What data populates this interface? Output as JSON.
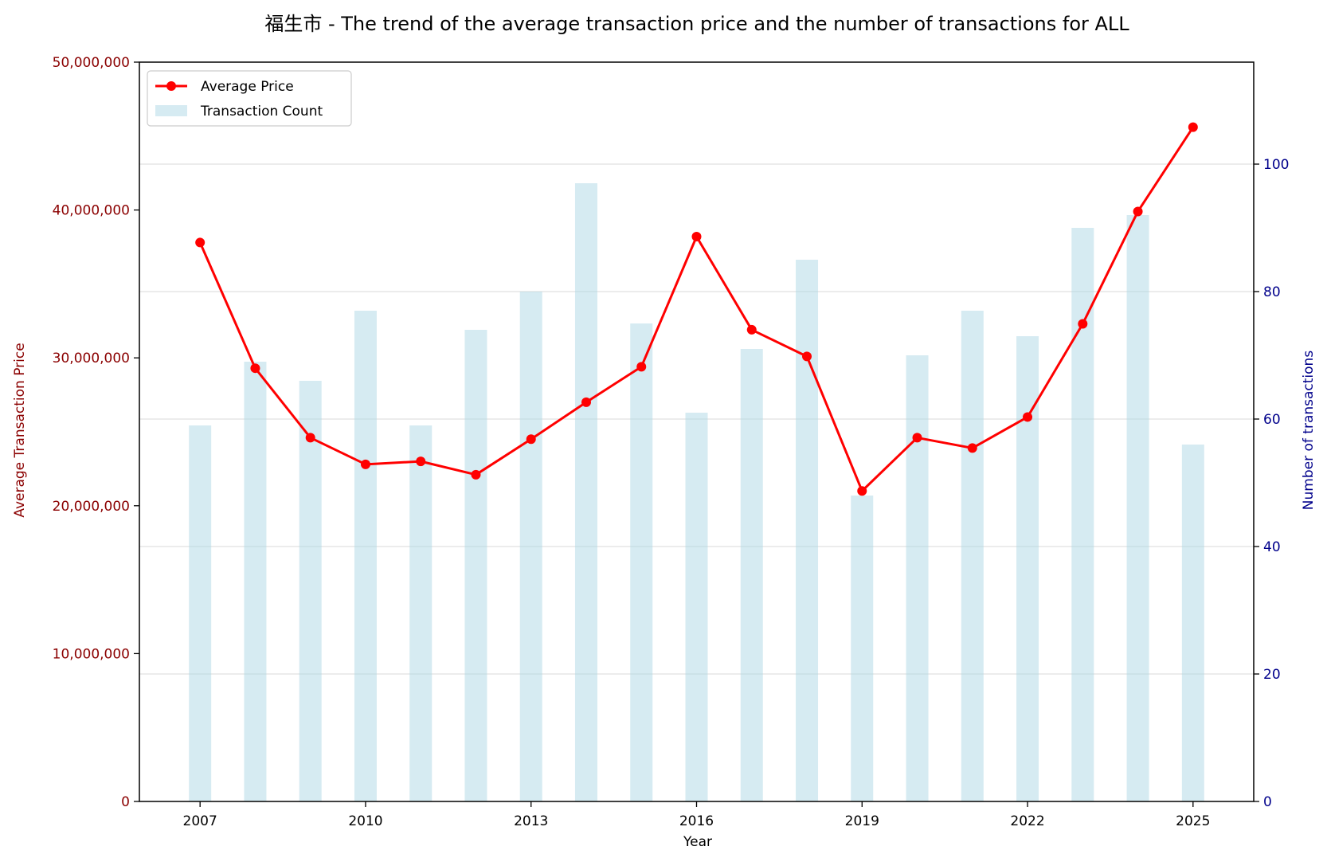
{
  "chart_data": {
    "type": "bar+line",
    "title": "福生市 - The trend of the average transaction price and the number of transactions for ALL",
    "xlabel": "Year",
    "ylabel_left": "Average Transaction Price",
    "ylabel_right": "Number of transactions",
    "x": [
      2007,
      2008,
      2009,
      2010,
      2011,
      2012,
      2013,
      2014,
      2015,
      2016,
      2017,
      2018,
      2019,
      2020,
      2021,
      2022,
      2023,
      2024,
      2025
    ],
    "x_ticks": [
      "2007",
      "2010",
      "2013",
      "2016",
      "2019",
      "2022",
      "2025"
    ],
    "xlim": [
      2005.9,
      2026.1
    ],
    "ylim_left": [
      0,
      50000000
    ],
    "ylim_right": [
      0,
      116
    ],
    "left_ticks": [
      "0",
      "10,000,000",
      "20,000,000",
      "30,000,000",
      "40,000,000",
      "50,000,000"
    ],
    "right_ticks": [
      "0",
      "20",
      "40",
      "60",
      "80",
      "100"
    ],
    "grid": true,
    "legend_position": "top-left",
    "series": [
      {
        "name": "Average Price",
        "type": "line",
        "axis": "left",
        "color": "#ff0000",
        "values": [
          37800000,
          29300000,
          24600000,
          22800000,
          23000000,
          22100000,
          24500000,
          27000000,
          29400000,
          38200000,
          31900000,
          30100000,
          21000000,
          24600000,
          23900000,
          26000000,
          32300000,
          39900000,
          45600000
        ]
      },
      {
        "name": "Transaction Count",
        "type": "bar",
        "axis": "right",
        "color": "#add8e6",
        "values": [
          59,
          69,
          66,
          77,
          59,
          74,
          80,
          97,
          75,
          61,
          71,
          85,
          48,
          70,
          77,
          73,
          90,
          92,
          56
        ]
      }
    ],
    "colors": {
      "left_axis": "#8b0000",
      "right_axis": "#00008b",
      "bar": "#add8e6",
      "line": "#ff0000"
    }
  }
}
